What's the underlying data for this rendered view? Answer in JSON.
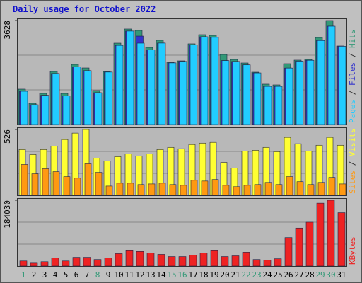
{
  "legend_separator": "/",
  "chart_data": [
    {
      "type": "bar",
      "title": "Daily usage for October 2022",
      "ylim": [
        0,
        3628
      ],
      "yticks": [
        3628
      ],
      "series": [
        {
          "name": "Hits",
          "color": "#339977",
          "values": [
            1234,
            740,
            1086,
            1851,
            1086,
            2098,
            1974,
            1185,
            1851,
            2838,
            3332,
            3283,
            2690,
            2937,
            2172,
            2221,
            2814,
            3134,
            3110,
            2443,
            2270,
            2147,
            1826,
            1407,
            1382,
            2122,
            2246,
            2270,
            3036,
            3628,
            2740
          ]
        },
        {
          "name": "Files",
          "color": "#3333cc",
          "values": [
            1160,
            690,
            1020,
            1780,
            1000,
            2010,
            1880,
            1110,
            1830,
            2760,
            3260,
            3084,
            2600,
            2840,
            2150,
            2200,
            2780,
            3060,
            3040,
            2230,
            2200,
            2080,
            1800,
            1330,
            1330,
            1970,
            2210,
            2240,
            2930,
            3430,
            2730
          ]
        },
        {
          "name": "Pages",
          "color": "#22ccff",
          "values": [
            1160,
            690,
            1020,
            1780,
            1000,
            2010,
            1880,
            1110,
            1830,
            2760,
            3260,
            2838,
            2600,
            2840,
            2150,
            2200,
            2780,
            3060,
            3040,
            2230,
            2200,
            2080,
            1800,
            1330,
            1330,
            1970,
            2210,
            2240,
            2930,
            3430,
            2730
          ]
        }
      ]
    },
    {
      "type": "bar",
      "ylim": [
        0,
        526
      ],
      "yticks": [
        526
      ],
      "series": [
        {
          "name": "Visits",
          "color": "#ffff33",
          "values": [
            366,
            326,
            366,
            394,
            446,
            497,
            526,
            297,
            274,
            309,
            332,
            314,
            332,
            366,
            383,
            372,
            406,
            417,
            423,
            263,
            217,
            354,
            360,
            383,
            349,
            463,
            412,
            354,
            400,
            463,
            400
          ]
        },
        {
          "name": "Sites",
          "color": "#ff9911",
          "values": [
            246,
            172,
            212,
            189,
            149,
            137,
            252,
            183,
            74,
            97,
            97,
            86,
            91,
            97,
            86,
            80,
            120,
            114,
            126,
            80,
            69,
            80,
            86,
            103,
            86,
            149,
            109,
            86,
            103,
            143,
            91
          ]
        }
      ]
    },
    {
      "type": "bar",
      "ylim": [
        0,
        184030
      ],
      "yticks": [
        184030
      ],
      "categories": [
        "1",
        "2",
        "3",
        "4",
        "5",
        "6",
        "7",
        "8",
        "9",
        "10",
        "11",
        "12",
        "13",
        "14",
        "15",
        "16",
        "17",
        "18",
        "19",
        "20",
        "21",
        "22",
        "23",
        "24",
        "25",
        "26",
        "27",
        "28",
        "29",
        "30",
        "31"
      ],
      "highlighted_categories": [
        0,
        7,
        14,
        15,
        21,
        22,
        28,
        29
      ],
      "highlight_color": "#339977",
      "series": [
        {
          "name": "KBytes",
          "color": "#ee2222",
          "values": [
            14313,
            8179,
            12269,
            22492,
            14313,
            24537,
            24537,
            18403,
            22492,
            34761,
            42940,
            40896,
            36806,
            32716,
            26582,
            26582,
            30672,
            36806,
            42940,
            26582,
            28627,
            38851,
            18403,
            16358,
            20448,
            79746,
            106328,
            122687,
            175851,
            184030,
            149269
          ]
        }
      ]
    }
  ]
}
